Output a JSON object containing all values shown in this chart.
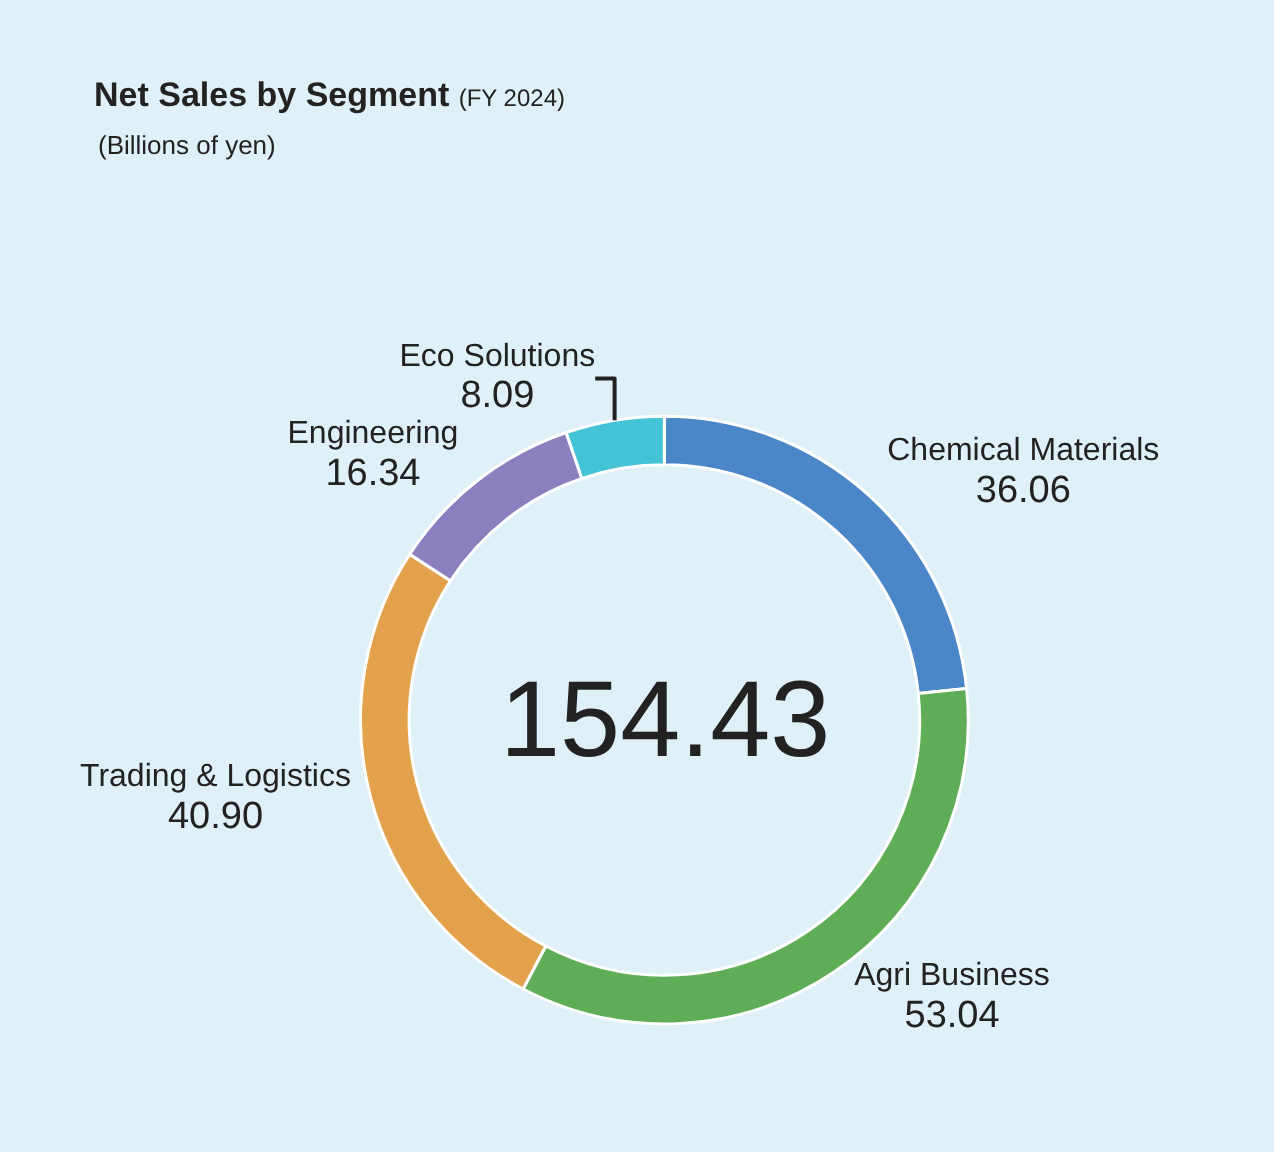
{
  "chart_data": {
    "type": "donut",
    "title": "Net Sales by Segment",
    "subtitle": "(FY 2024)",
    "annotations": [
      "(Billions of yen)",
      "154.43"
    ],
    "categories": [
      "Chemical Materials",
      "Agri Business",
      "Trading & Logistics",
      "Engineering",
      "Eco Solutions"
    ],
    "values": [
      36.06,
      53.04,
      40.9,
      16.34,
      8.09
    ],
    "value_labels": [
      "36.06",
      "53.04",
      "40.90",
      "16.34",
      "8.09"
    ],
    "colors": [
      "#4a86c8",
      "#5fad56",
      "#e2a14a",
      "#8c7fbf",
      "#45c3d6"
    ],
    "legend": false
  }
}
